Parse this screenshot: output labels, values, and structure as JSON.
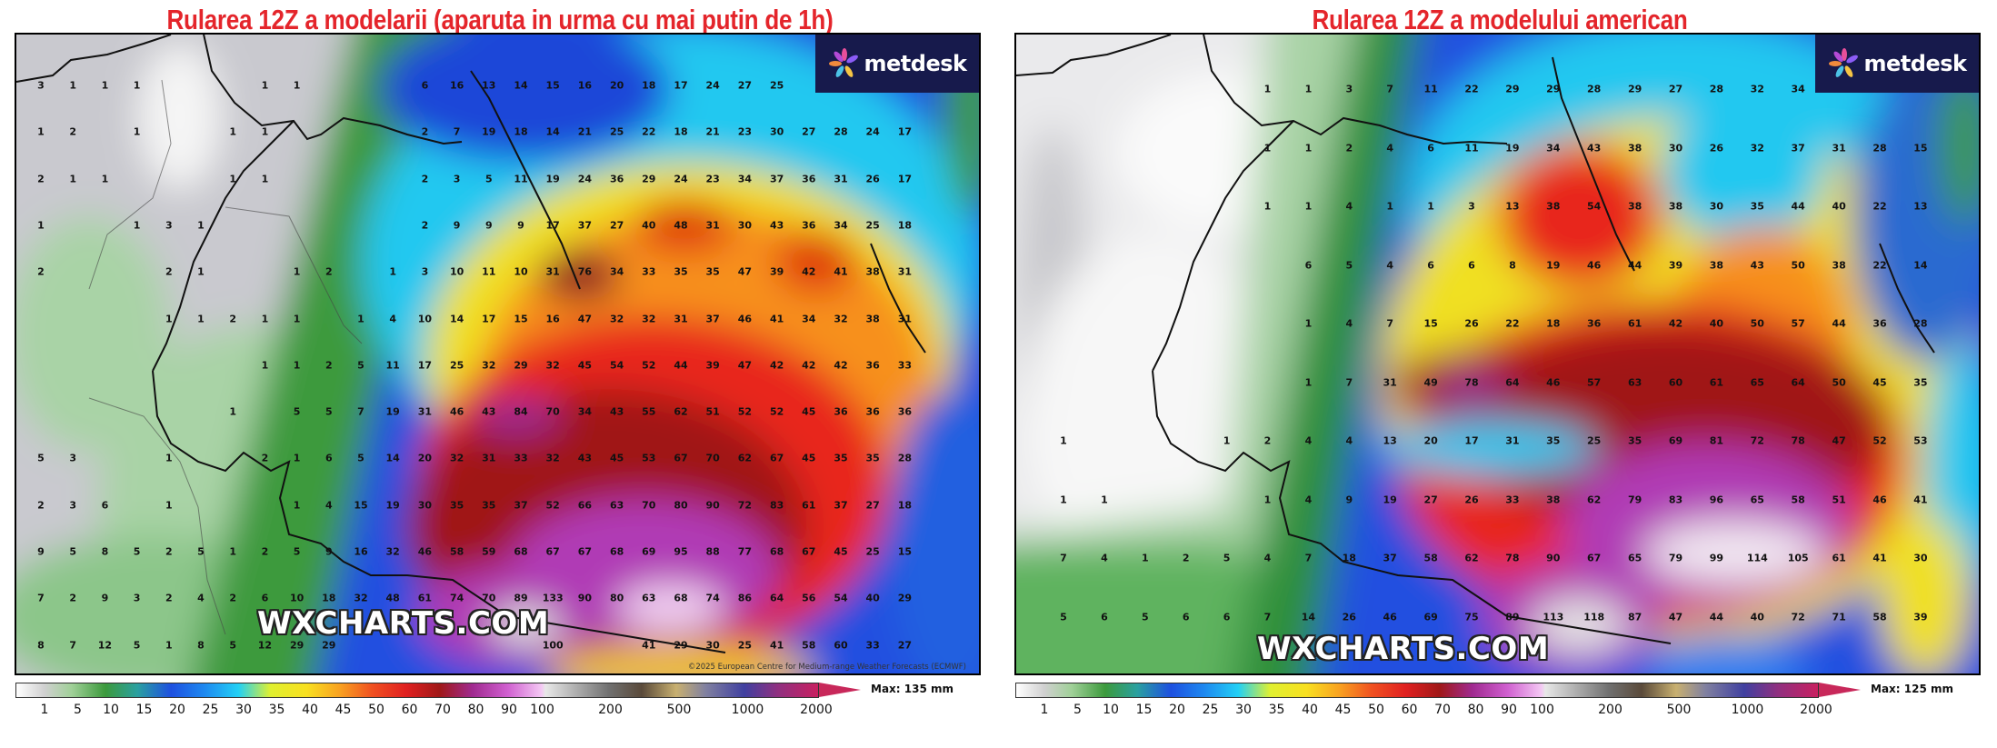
{
  "panels": [
    {
      "title": "Rularea 12Z a modelarii (aparuta in urma cu mai putin de 1h)",
      "logo_text": "metdesk",
      "watermark": "WXCHARTS.COM",
      "credit": "©2025 European Centre for Medium-range Weather Forecasts (ECMWF)",
      "max_label": "Max: 135 mm",
      "grid": [
        [
          3,
          1,
          1,
          1,
          null,
          null,
          null,
          1,
          1,
          null,
          null,
          null,
          6,
          16,
          13,
          14,
          15,
          16,
          20,
          18,
          17,
          24,
          27,
          25,
          null,
          null,
          null,
          null
        ],
        [
          1,
          2,
          null,
          1,
          null,
          null,
          1,
          1,
          null,
          null,
          null,
          null,
          2,
          7,
          19,
          18,
          14,
          21,
          25,
          22,
          18,
          21,
          23,
          30,
          27,
          28,
          24,
          17
        ],
        [
          2,
          1,
          1,
          null,
          null,
          null,
          1,
          1,
          null,
          null,
          null,
          null,
          2,
          3,
          5,
          11,
          19,
          24,
          36,
          29,
          24,
          23,
          34,
          37,
          36,
          31,
          26,
          17
        ],
        [
          1,
          null,
          null,
          1,
          3,
          1,
          null,
          null,
          null,
          null,
          null,
          null,
          2,
          9,
          9,
          9,
          17,
          37,
          27,
          40,
          48,
          31,
          30,
          43,
          36,
          34,
          25,
          18
        ],
        [
          2,
          null,
          null,
          null,
          2,
          1,
          null,
          null,
          1,
          2,
          null,
          1,
          3,
          10,
          11,
          10,
          31,
          76,
          34,
          33,
          35,
          35,
          47,
          39,
          42,
          41,
          38,
          31
        ],
        [
          null,
          null,
          null,
          null,
          1,
          1,
          2,
          1,
          1,
          null,
          1,
          4,
          10,
          14,
          17,
          15,
          16,
          47,
          32,
          32,
          31,
          37,
          46,
          41,
          34,
          32,
          38,
          31
        ],
        [
          null,
          null,
          null,
          null,
          null,
          null,
          null,
          1,
          1,
          2,
          5,
          11,
          17,
          25,
          32,
          29,
          32,
          45,
          54,
          52,
          44,
          39,
          47,
          42,
          42,
          42,
          36,
          33
        ],
        [
          null,
          null,
          null,
          null,
          null,
          null,
          1,
          null,
          5,
          5,
          7,
          19,
          31,
          46,
          43,
          84,
          70,
          34,
          43,
          55,
          62,
          51,
          52,
          52,
          45,
          36,
          36,
          36
        ],
        [
          5,
          3,
          null,
          null,
          1,
          null,
          null,
          2,
          1,
          6,
          5,
          14,
          20,
          32,
          31,
          33,
          32,
          43,
          45,
          53,
          67,
          70,
          62,
          67,
          45,
          35,
          35,
          28
        ],
        [
          2,
          3,
          6,
          null,
          1,
          null,
          null,
          null,
          1,
          4,
          15,
          19,
          30,
          35,
          35,
          37,
          52,
          66,
          63,
          70,
          80,
          90,
          72,
          83,
          61,
          37,
          27,
          18
        ],
        [
          9,
          5,
          8,
          5,
          2,
          5,
          1,
          2,
          5,
          9,
          16,
          32,
          46,
          58,
          59,
          68,
          67,
          67,
          68,
          69,
          95,
          88,
          77,
          68,
          67,
          45,
          25,
          15
        ],
        [
          7,
          2,
          9,
          3,
          2,
          4,
          2,
          6,
          10,
          18,
          32,
          48,
          61,
          74,
          70,
          89,
          133,
          90,
          80,
          63,
          68,
          74,
          86,
          64,
          56,
          54,
          40,
          29
        ],
        [
          8,
          7,
          12,
          5,
          1,
          8,
          5,
          12,
          29,
          29,
          null,
          null,
          null,
          null,
          null,
          null,
          100,
          null,
          null,
          41,
          29,
          30,
          25,
          41,
          58,
          60,
          33,
          27
        ]
      ]
    },
    {
      "title": "Rularea 12Z a modelului american",
      "logo_text": "metdesk",
      "watermark": "WXCHARTS.COM",
      "max_label": "Max: 125 mm",
      "grid": [
        [
          null,
          null,
          null,
          null,
          null,
          1,
          1,
          3,
          7,
          11,
          22,
          29,
          29,
          28,
          29,
          27,
          28,
          32,
          34,
          null,
          null,
          null
        ],
        [
          null,
          null,
          null,
          null,
          null,
          1,
          1,
          2,
          4,
          6,
          11,
          19,
          34,
          43,
          38,
          30,
          26,
          32,
          37,
          31,
          28,
          15
        ],
        [
          null,
          null,
          null,
          null,
          null,
          1,
          1,
          4,
          1,
          1,
          3,
          13,
          38,
          54,
          38,
          38,
          30,
          35,
          44,
          40,
          22,
          13
        ],
        [
          null,
          null,
          null,
          null,
          null,
          null,
          6,
          5,
          4,
          6,
          6,
          8,
          19,
          46,
          44,
          39,
          38,
          43,
          50,
          38,
          22,
          14
        ],
        [
          null,
          null,
          null,
          null,
          null,
          null,
          1,
          4,
          7,
          15,
          26,
          22,
          18,
          36,
          61,
          42,
          40,
          50,
          57,
          44,
          36,
          28
        ],
        [
          null,
          null,
          null,
          null,
          null,
          null,
          1,
          7,
          31,
          49,
          78,
          64,
          46,
          57,
          63,
          60,
          61,
          65,
          64,
          50,
          45,
          35
        ],
        [
          1,
          null,
          null,
          null,
          1,
          2,
          4,
          4,
          13,
          20,
          17,
          31,
          35,
          25,
          35,
          69,
          81,
          72,
          78,
          47,
          52,
          53
        ],
        [
          1,
          1,
          null,
          null,
          null,
          1,
          4,
          9,
          19,
          27,
          26,
          33,
          38,
          62,
          79,
          83,
          96,
          65,
          58,
          51,
          46,
          41
        ],
        [
          7,
          4,
          1,
          2,
          5,
          4,
          7,
          18,
          37,
          58,
          62,
          78,
          90,
          67,
          65,
          79,
          99,
          114,
          105,
          61,
          41,
          30
        ],
        [
          5,
          6,
          5,
          6,
          6,
          7,
          14,
          26,
          46,
          69,
          75,
          89,
          113,
          118,
          87,
          47,
          44,
          40,
          72,
          71,
          58,
          39
        ]
      ]
    }
  ],
  "colorbar": {
    "ticks": [
      "1",
      "5",
      "10",
      "15",
      "20",
      "25",
      "30",
      "35",
      "40",
      "45",
      "50",
      "60",
      "70",
      "80",
      "90",
      "100",
      "200",
      "500",
      "1000",
      "2000"
    ],
    "unit": "mm"
  },
  "colors": {
    "title": "#e4252b",
    "logo_bg": "#171a4c"
  }
}
